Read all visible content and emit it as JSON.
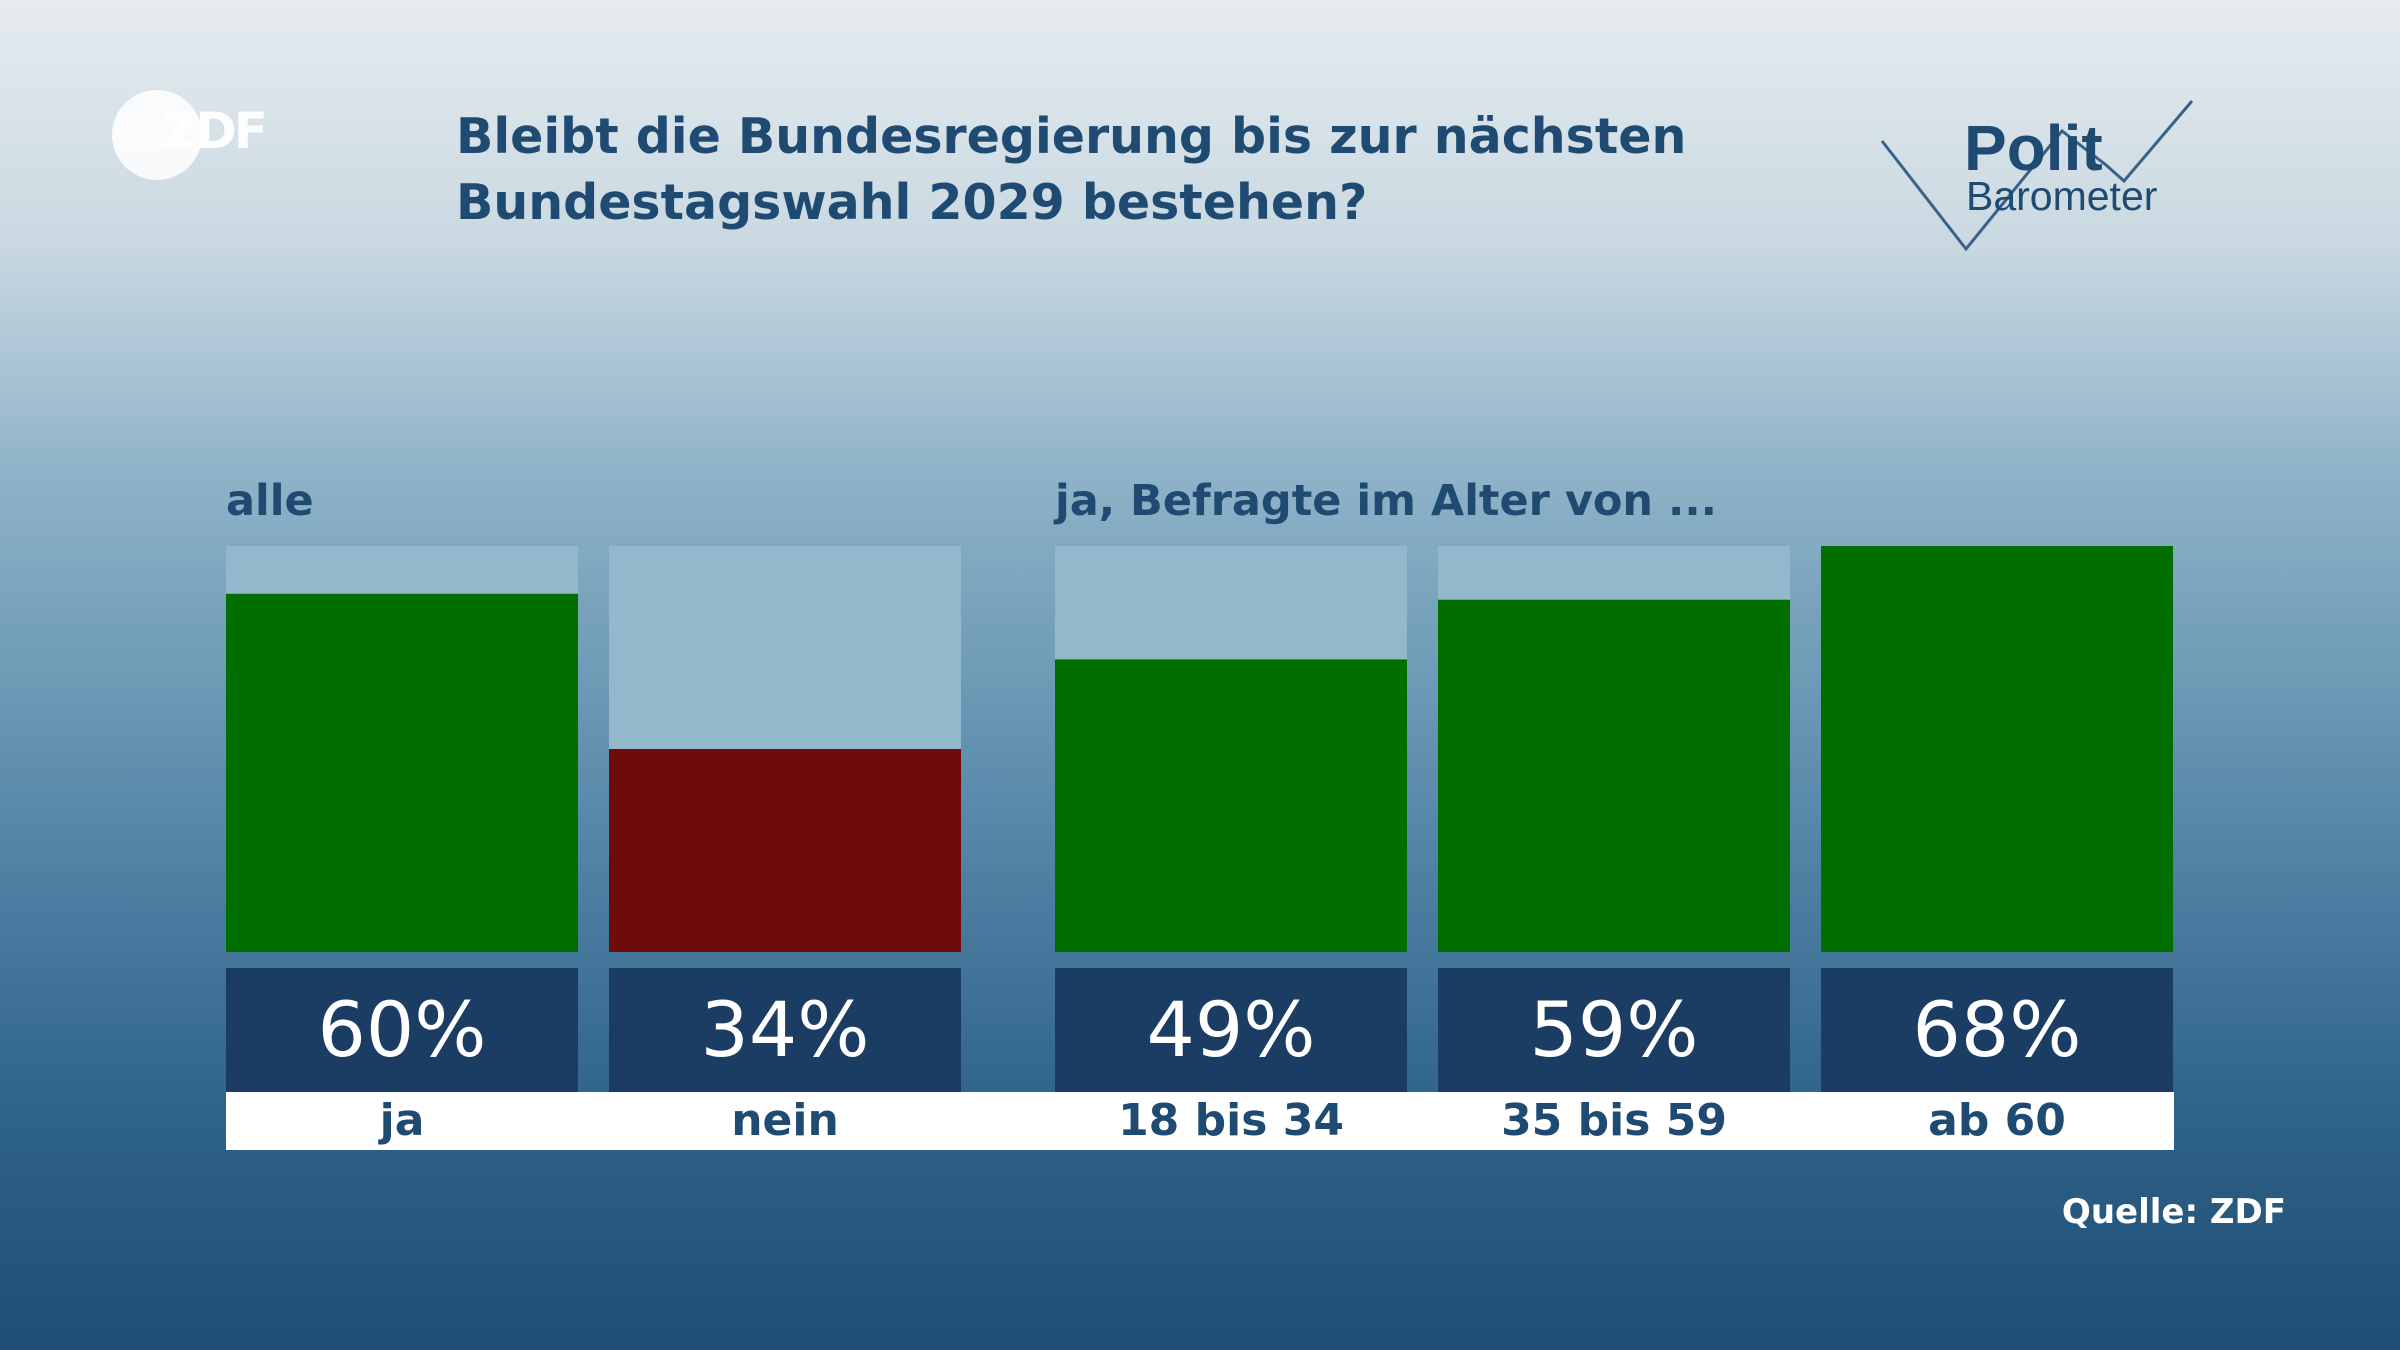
{
  "brand": {
    "logo_text": "ZDF"
  },
  "title_lines": [
    "Bleibt die Bundesregierung bis zur nächsten",
    "Bundestagswahl 2029 bestehen?"
  ],
  "politbarometer": {
    "line1": "Polit",
    "line2": "Barometer"
  },
  "groups": {
    "all_label": "alle",
    "age_label": "ja, Befragte im Alter von ..."
  },
  "source": "Quelle: ZDF",
  "colors": {
    "yes": "#006f00",
    "no": "#700b0b",
    "bar_bg": "#94b8cb",
    "label_bg": "#1c3d63"
  },
  "chart_data": {
    "type": "bar",
    "title": "Bleibt die Bundesregierung bis zur nächsten Bundestagswahl 2029 bestehen?",
    "categories": [
      "ja",
      "nein",
      "18 bis 34",
      "35 bis 59",
      "ab 60"
    ],
    "values": [
      60,
      34,
      49,
      59,
      68
    ],
    "value_labels": [
      "60%",
      "34%",
      "49%",
      "59%",
      "68%"
    ],
    "bar_colors": [
      "#006f00",
      "#700b0b",
      "#006f00",
      "#006f00",
      "#006f00"
    ],
    "groups": [
      {
        "label": "alle",
        "categories": [
          "ja",
          "nein"
        ]
      },
      {
        "label": "ja, Befragte im Alter von ...",
        "categories": [
          "18 bis 34",
          "35 bis 59",
          "ab 60"
        ]
      }
    ],
    "ylim": [
      0,
      68
    ],
    "unit": "%",
    "grid": false
  }
}
